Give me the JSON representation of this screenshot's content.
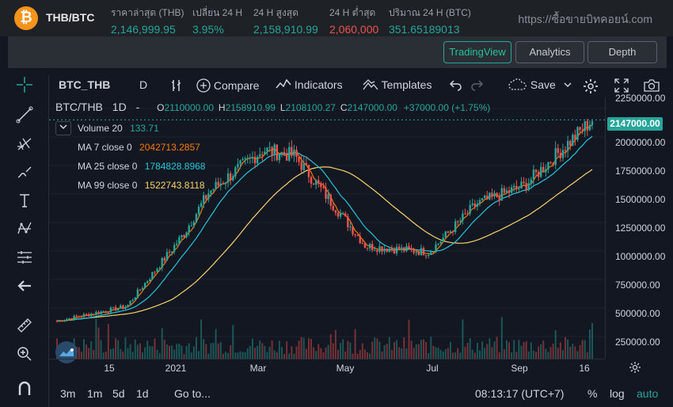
{
  "ticker": {
    "pair": "THB/BTC",
    "last_label": "ราคาล่าสุด (THB)",
    "last_value": "2,146,999.95",
    "change_label": "เปลี่ยน 24 H",
    "change_value": "3.95%",
    "high_label": "24 H สูงสุด",
    "high_value": "2,158,910.99",
    "low_label": "24 H ต่ำสุด",
    "low_value": "2,060,000",
    "volume_label": "ปริมาณ 24 H (BTC)",
    "volume_value": "351.65189013",
    "site": "https://ซื้อขายบิทคอยน์.com"
  },
  "modes": {
    "tradingview": "TradingView",
    "analytics": "Analytics",
    "depth": "Depth"
  },
  "toolbar": {
    "symbol": "BTC_THB",
    "interval": "D",
    "compare": "Compare",
    "indicators": "Indicators",
    "templates": "Templates",
    "save": "Save"
  },
  "legend": {
    "title": "BTC/THB",
    "interval": "1D",
    "dash": "-",
    "o_label": "O",
    "o_value": "2110000.00",
    "h_label": "H",
    "h_value": "2158910.99",
    "l_label": "L",
    "l_value": "2108100.27",
    "c_label": "C",
    "c_value": "2147000.00",
    "change": "+37000.00 (+1.75%)",
    "volume_label": "Volume 20",
    "volume_value": "133.71",
    "ma7_label": "MA 7 close 0",
    "ma7_value": "2042713.2857",
    "ma25_label": "MA 25 close 0",
    "ma25_value": "1784828.8968",
    "ma99_label": "MA 99 close 0",
    "ma99_value": "1522743.8118"
  },
  "colors": {
    "up": "#26a69a",
    "down": "#ef5350",
    "ma7": "#f57c00",
    "ma25": "#26c6da",
    "ma99": "#f9d26a",
    "current_price": "#26a69a"
  },
  "price_scale": {
    "labels": [
      "2250000.00",
      "2000000.00",
      "1750000.00",
      "1500000.00",
      "1250000.00",
      "1000000.00",
      "750000.00",
      "500000.00",
      "250000.00"
    ],
    "current": "2147000.00"
  },
  "time_scale": {
    "labels": [
      "15",
      "2021",
      "Mar",
      "May",
      "Jul",
      "Sep",
      "16"
    ]
  },
  "bottom": {
    "ranges": [
      "3m",
      "1m",
      "5d",
      "1d"
    ],
    "goto": "Go to...",
    "clock": "08:13:17 (UTC+7)",
    "percent": "%",
    "log": "log",
    "auto": "auto"
  },
  "chart_data": {
    "type": "candlestick",
    "x_label_ticks": [
      "15",
      "2021",
      "Mar",
      "May",
      "Jul",
      "Sep",
      "16"
    ],
    "ylim": [
      200000,
      2300000
    ],
    "close_path_anchors": [
      {
        "x": "15",
        "y": 480000
      },
      {
        "x": "2021",
        "y": 600000
      },
      {
        "x": "Feb",
        "y": 1200000
      },
      {
        "x": "Mar",
        "y": 1550000
      },
      {
        "x": "Apr",
        "y": 1900000
      },
      {
        "x": "May",
        "y": 1850000
      },
      {
        "x": "Jun",
        "y": 1100000
      },
      {
        "x": "Jul",
        "y": 1050000
      },
      {
        "x": "Aug",
        "y": 1450000
      },
      {
        "x": "Sep",
        "y": 1600000
      },
      {
        "x": "16",
        "y": 2147000
      }
    ],
    "series": [
      {
        "name": "MA 7 close 0",
        "last": 2042713.2857
      },
      {
        "name": "MA 25 close 0",
        "last": 1784828.8968
      },
      {
        "name": "MA 99 close 0",
        "last": 1522743.8118
      }
    ]
  }
}
